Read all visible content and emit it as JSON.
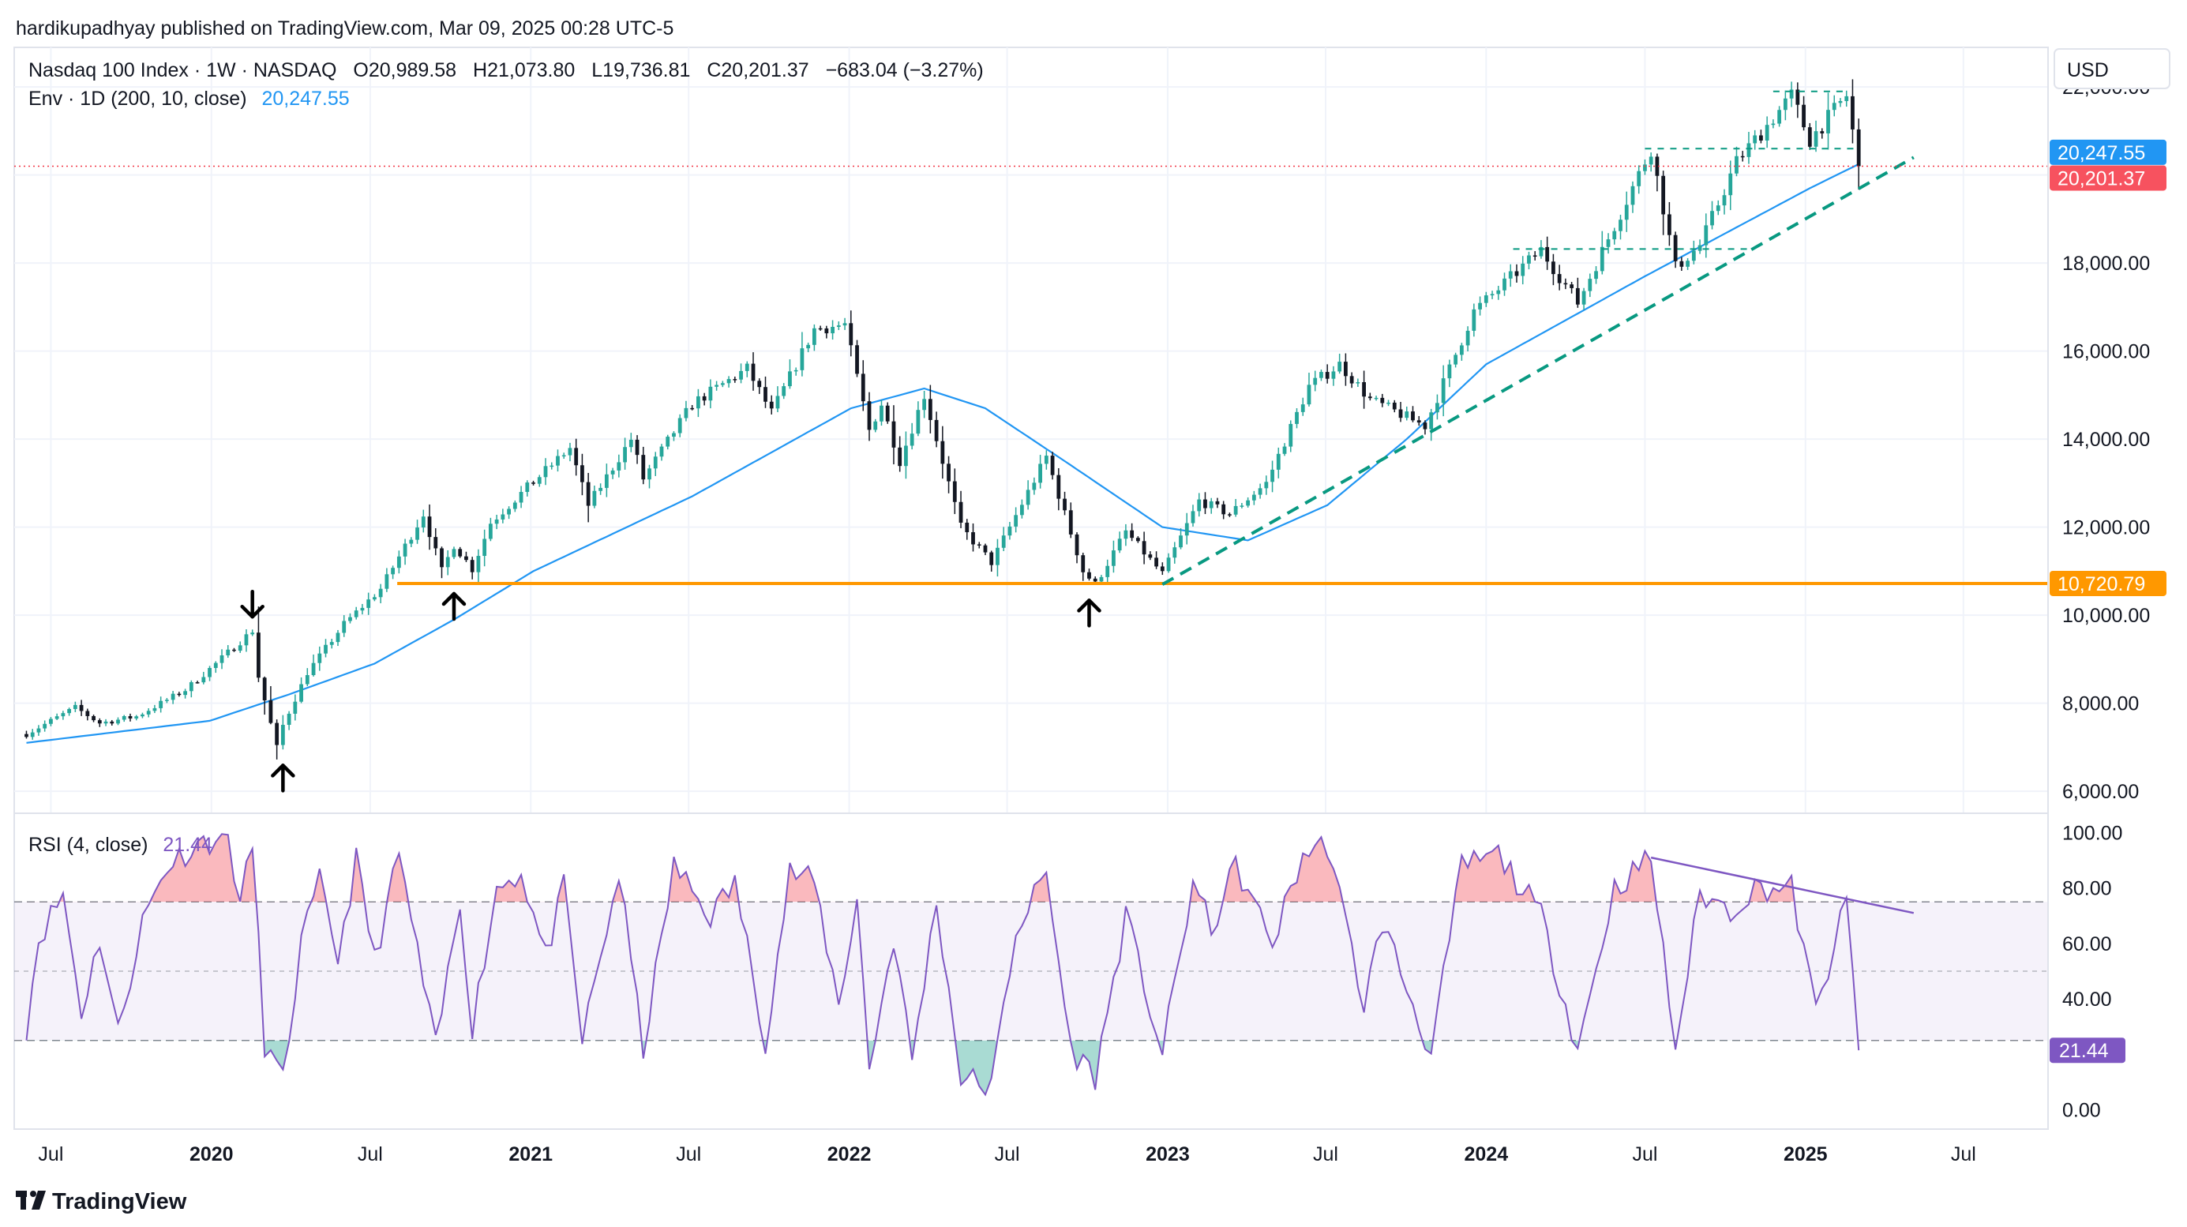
{
  "header": {
    "publisher_line": "hardikupadhyay published on TradingView.com, Mar 09, 2025 00:28 UTC-5"
  },
  "legend": {
    "symbol_line": "Nasdaq 100 Index · 1W · NASDAQ",
    "open_label": "O",
    "open": "20,989.58",
    "high_label": "H",
    "high": "21,073.80",
    "low_label": "L",
    "low": "19,736.81",
    "close_label": "C",
    "close": "20,201.37",
    "change": "−683.04 (−3.27%)",
    "env_line": "Env · 1D (200, 10, close)",
    "env_value": "20,247.55"
  },
  "currency_button": "USD",
  "rsi_legend": {
    "label": "RSI (4, close)",
    "value": "21.44"
  },
  "footer": {
    "brand": "TradingView"
  },
  "colors": {
    "up": "#26a69a",
    "down": "#131722",
    "envelope": "#2196f3",
    "support": "#ff9800",
    "last_price": "#f23645",
    "rsi": "#7e57c2",
    "trend": "#089981"
  },
  "chart_data": [
    {
      "type": "candlestick",
      "title": "Nasdaq 100 Index · 1W · NASDAQ",
      "price_scale": [
        "22,000.00",
        "20,000.00",
        "18,000.00",
        "16,000.00",
        "14,000.00",
        "12,000.00",
        "10,000.00",
        "8,000.00",
        "6,000.00"
      ],
      "ylim": [
        5500,
        22900
      ],
      "time_axis": [
        "Jul",
        "2020",
        "Jul",
        "2021",
        "Jul",
        "2022",
        "Jul",
        "2023",
        "Jul",
        "2024",
        "Jul",
        "2025",
        "Jul"
      ],
      "xlim": [
        "2019-05-20",
        "2025-10-06"
      ],
      "price_labels": {
        "envelope": "20,247.55",
        "last_close": "20,201.37",
        "support": "10,720.79"
      },
      "support_level": 10720.79,
      "last_close": 20201.37,
      "close_path": [
        [
          "2019-06-03",
          7300
        ],
        [
          "2019-07-29",
          7900
        ],
        [
          "2019-08-26",
          7550
        ],
        [
          "2019-10-07",
          7700
        ],
        [
          "2019-12-02",
          8300
        ],
        [
          "2020-01-06",
          8900
        ],
        [
          "2020-02-17",
          9650
        ],
        [
          "2020-02-24",
          8600
        ],
        [
          "2020-03-16",
          7000
        ],
        [
          "2020-03-23",
          7500
        ],
        [
          "2020-04-20",
          8700
        ],
        [
          "2020-06-01",
          9800
        ],
        [
          "2020-07-13",
          10600
        ],
        [
          "2020-08-31",
          12300
        ],
        [
          "2020-09-21",
          11000
        ],
        [
          "2020-10-05",
          11600
        ],
        [
          "2020-10-26",
          11050
        ],
        [
          "2020-11-16",
          12100
        ],
        [
          "2020-12-28",
          12900
        ],
        [
          "2021-02-15",
          13800
        ],
        [
          "2021-03-08",
          12500
        ],
        [
          "2021-04-26",
          14000
        ],
        [
          "2021-05-10",
          13100
        ],
        [
          "2021-07-05",
          14800
        ],
        [
          "2021-09-06",
          15600
        ],
        [
          "2021-10-04",
          14600
        ],
        [
          "2021-11-22",
          16500
        ],
        [
          "2021-12-27",
          16600
        ],
        [
          "2022-01-24",
          14200
        ],
        [
          "2022-02-07",
          14800
        ],
        [
          "2022-02-28",
          13500
        ],
        [
          "2022-03-28",
          15000
        ],
        [
          "2022-05-09",
          12000
        ],
        [
          "2022-06-13",
          11200
        ],
        [
          "2022-08-15",
          13600
        ],
        [
          "2022-09-26",
          11000
        ],
        [
          "2022-10-10",
          10700
        ],
        [
          "2022-11-14",
          11900
        ],
        [
          "2022-12-26",
          10940
        ],
        [
          "2023-02-06",
          12600
        ],
        [
          "2023-03-13",
          12300
        ],
        [
          "2023-04-24",
          13000
        ],
        [
          "2023-06-12",
          15200
        ],
        [
          "2023-07-17",
          15700
        ],
        [
          "2023-08-21",
          14900
        ],
        [
          "2023-10-23",
          14300
        ],
        [
          "2023-12-18",
          16900
        ],
        [
          "2024-03-04",
          18300
        ],
        [
          "2024-04-15",
          17100
        ],
        [
          "2024-07-08",
          20600
        ],
        [
          "2024-08-05",
          17900
        ],
        [
          "2024-09-02",
          18400
        ],
        [
          "2024-10-14",
          20300
        ],
        [
          "2024-12-16",
          21800
        ],
        [
          "2025-01-06",
          20800
        ],
        [
          "2025-02-17",
          21800
        ],
        [
          "2025-03-03",
          20201
        ]
      ],
      "envelope_path": [
        [
          "2019-06-03",
          7100
        ],
        [
          "2019-12-30",
          7600
        ],
        [
          "2020-03-30",
          8200
        ],
        [
          "2020-07-06",
          8900
        ],
        [
          "2020-10-05",
          9900
        ],
        [
          "2021-01-04",
          11000
        ],
        [
          "2021-07-05",
          12700
        ],
        [
          "2022-01-03",
          14700
        ],
        [
          "2022-03-28",
          15150
        ],
        [
          "2022-06-06",
          14700
        ],
        [
          "2022-09-05",
          13500
        ],
        [
          "2022-12-26",
          12000
        ],
        [
          "2023-04-03",
          11700
        ],
        [
          "2023-07-03",
          12500
        ],
        [
          "2023-10-02",
          14000
        ],
        [
          "2024-01-01",
          15700
        ],
        [
          "2024-07-01",
          17700
        ],
        [
          "2025-01-06",
          19700
        ],
        [
          "2025-03-03",
          20247.55
        ]
      ],
      "annotations": [
        {
          "type": "horizontal-line",
          "price": 10720.79,
          "from": "2020-08-01"
        },
        {
          "type": "trend-line",
          "from": [
            "2022-12-26",
            10700
          ],
          "to": [
            "2025-05-05",
            20400
          ]
        },
        {
          "type": "range-line",
          "price": 18320,
          "from": "2024-02-01",
          "to": "2024-10-28"
        },
        {
          "type": "range-line",
          "price": 20600,
          "from": "2024-07-01",
          "to": "2025-03-03"
        },
        {
          "type": "range-line",
          "price": 21900,
          "from": "2024-11-25",
          "to": "2025-02-17"
        },
        {
          "type": "arrow-down",
          "at": [
            "2020-02-17",
            10250
          ]
        },
        {
          "type": "arrow-up",
          "at": [
            "2020-03-23",
            6300
          ]
        },
        {
          "type": "arrow-up",
          "at": [
            "2020-10-05",
            10200
          ]
        },
        {
          "type": "arrow-up",
          "at": [
            "2022-10-03",
            10050
          ]
        }
      ]
    },
    {
      "type": "line",
      "title": "RSI (4, close)",
      "value_scale": [
        "100.00",
        "80.00",
        "60.00",
        "40.00",
        "0.00"
      ],
      "ylim": [
        0,
        100
      ],
      "bands": {
        "upper": 75,
        "middle": 50,
        "lower": 25
      },
      "last_label": "21.44",
      "last_value": 21.44,
      "rsi_path": [
        [
          "2019-06-03",
          30
        ],
        [
          "2019-06-17",
          62
        ],
        [
          "2019-07-15",
          78
        ],
        [
          "2019-08-05",
          35
        ],
        [
          "2019-08-26",
          62
        ],
        [
          "2019-09-16",
          28
        ],
        [
          "2019-10-14",
          68
        ],
        [
          "2019-11-11",
          88
        ],
        [
          "2019-12-16",
          96
        ],
        [
          "2020-01-20",
          99
        ],
        [
          "2020-02-03",
          74
        ],
        [
          "2020-02-17",
          96
        ],
        [
          "2020-03-02",
          24
        ],
        [
          "2020-03-23",
          10
        ],
        [
          "2020-04-13",
          60
        ],
        [
          "2020-05-04",
          82
        ],
        [
          "2020-05-25",
          55
        ],
        [
          "2020-06-15",
          90
        ],
        [
          "2020-07-06",
          54
        ],
        [
          "2020-08-03",
          92
        ],
        [
          "2020-09-14",
          22
        ],
        [
          "2020-10-12",
          75
        ],
        [
          "2020-10-26",
          30
        ],
        [
          "2020-11-23",
          80
        ],
        [
          "2020-12-21",
          86
        ],
        [
          "2021-01-18",
          55
        ],
        [
          "2021-02-08",
          80
        ],
        [
          "2021-03-01",
          25
        ],
        [
          "2021-04-12",
          85
        ],
        [
          "2021-05-10",
          22
        ],
        [
          "2021-06-14",
          88
        ],
        [
          "2021-07-26",
          70
        ],
        [
          "2021-08-23",
          82
        ],
        [
          "2021-09-27",
          25
        ],
        [
          "2021-10-25",
          86
        ],
        [
          "2021-11-22",
          82
        ],
        [
          "2021-12-20",
          38
        ],
        [
          "2022-01-10",
          76
        ],
        [
          "2022-01-24",
          15
        ],
        [
          "2022-02-21",
          62
        ],
        [
          "2022-03-14",
          18
        ],
        [
          "2022-04-11",
          75
        ],
        [
          "2022-05-09",
          12
        ],
        [
          "2022-06-13",
          8
        ],
        [
          "2022-07-11",
          65
        ],
        [
          "2022-08-15",
          85
        ],
        [
          "2022-09-12",
          22
        ],
        [
          "2022-10-10",
          12
        ],
        [
          "2022-11-14",
          70
        ],
        [
          "2022-12-26",
          20
        ],
        [
          "2023-01-30",
          82
        ],
        [
          "2023-02-20",
          65
        ],
        [
          "2023-03-20",
          88
        ],
        [
          "2023-05-01",
          60
        ],
        [
          "2023-06-05",
          92
        ],
        [
          "2023-07-03",
          96
        ],
        [
          "2023-08-14",
          38
        ],
        [
          "2023-09-04",
          68
        ],
        [
          "2023-10-30",
          20
        ],
        [
          "2023-12-04",
          88
        ],
        [
          "2024-01-15",
          92
        ],
        [
          "2024-03-04",
          70
        ],
        [
          "2024-04-15",
          22
        ],
        [
          "2024-05-27",
          80
        ],
        [
          "2024-07-08",
          91
        ],
        [
          "2024-08-05",
          22
        ],
        [
          "2024-09-02",
          78
        ],
        [
          "2024-10-07",
          72
        ],
        [
          "2024-11-04",
          80
        ],
        [
          "2024-12-16",
          80
        ],
        [
          "2025-01-13",
          35
        ],
        [
          "2025-02-17",
          75
        ],
        [
          "2025-03-03",
          21.44
        ]
      ],
      "annotations": [
        {
          "type": "trend-line",
          "from": [
            "2024-07-08",
            91
          ],
          "to": [
            "2025-05-05",
            71
          ]
        }
      ]
    }
  ]
}
